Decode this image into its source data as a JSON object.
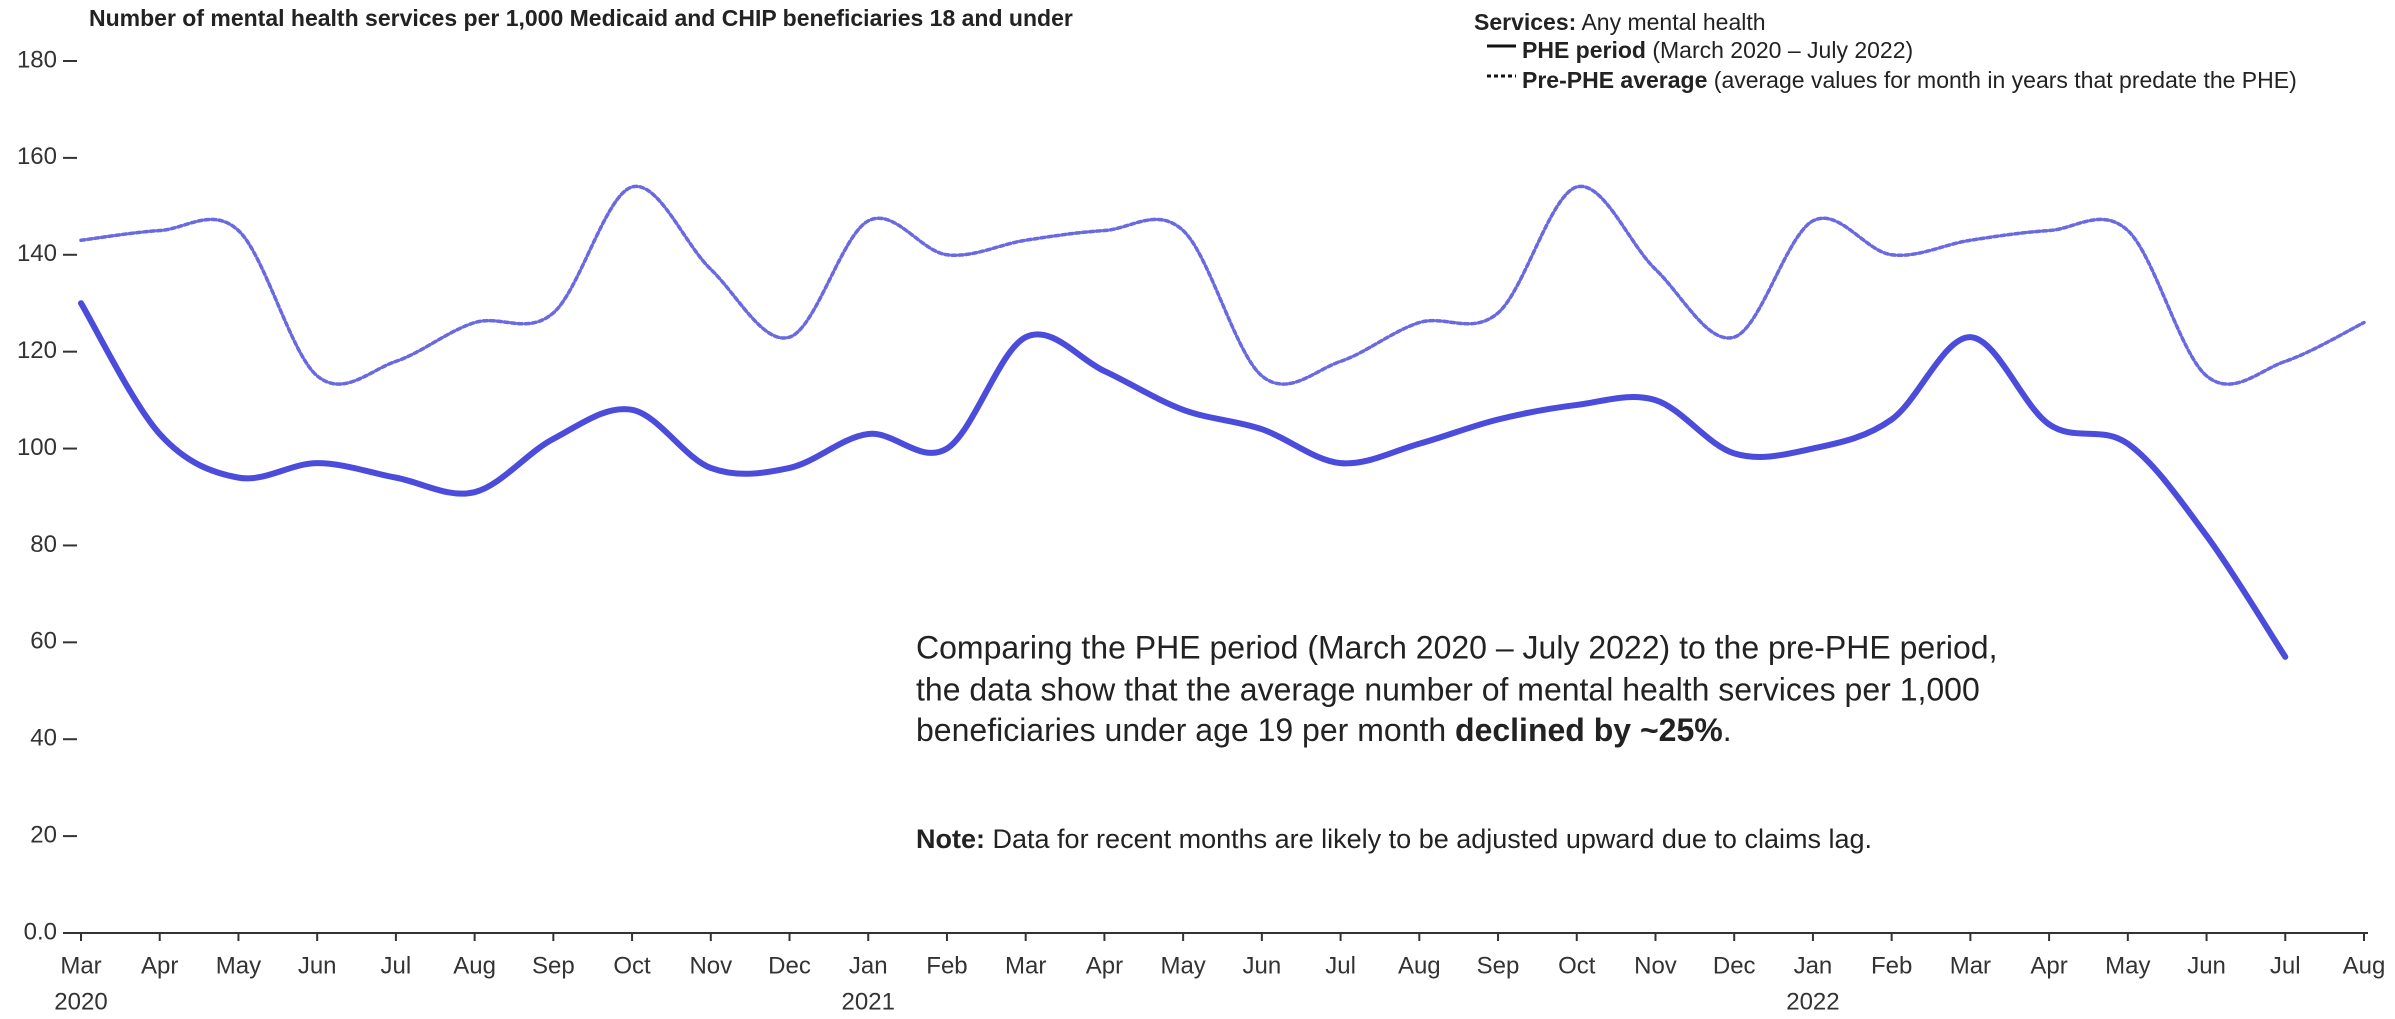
{
  "chart_data": {
    "type": "line",
    "title": "Number of mental health services per 1,000 Medicaid and CHIP beneficiaries 18 and under",
    "legend_title": "Services:",
    "legend_subtitle": "Any mental health",
    "categories": [
      "Mar",
      "Apr",
      "May",
      "Jun",
      "Jul",
      "Aug",
      "Sep",
      "Oct",
      "Nov",
      "Dec",
      "Jan",
      "Feb",
      "Mar",
      "Apr",
      "May",
      "Jun",
      "Jul",
      "Aug",
      "Sep",
      "Oct",
      "Nov",
      "Dec",
      "Jan",
      "Feb",
      "Mar",
      "Apr",
      "May",
      "Jun",
      "Jul",
      "Aug"
    ],
    "category_years": [
      "2020",
      null,
      null,
      null,
      null,
      null,
      null,
      null,
      null,
      null,
      "2021",
      null,
      null,
      null,
      null,
      null,
      null,
      null,
      null,
      null,
      null,
      null,
      "2022",
      null,
      null,
      null,
      null,
      null,
      null,
      null
    ],
    "series": [
      {
        "name": "PHE period",
        "description": "(March 2020 – July 2022)",
        "color": "#4b4bdc",
        "style": "solid",
        "values": [
          130,
          103,
          94,
          97,
          94,
          91,
          102,
          108,
          96,
          96,
          103,
          100,
          123,
          116,
          108,
          104,
          97,
          101,
          106,
          109,
          110,
          99,
          100,
          106,
          123,
          105,
          101,
          82,
          57,
          null
        ]
      },
      {
        "name": "Pre-PHE average",
        "description": "(average values for month in years that predate the PHE)",
        "color": "#6a6ae0",
        "style": "dotted",
        "values": [
          143,
          145,
          145,
          115,
          118,
          126,
          128,
          154,
          137,
          123,
          147,
          140,
          143,
          145,
          145,
          115,
          118,
          126,
          128,
          154,
          137,
          123,
          147,
          140,
          143,
          145,
          145,
          115,
          118,
          126
        ]
      }
    ],
    "ylim": [
      0,
      180
    ],
    "yticks": [
      {
        "value": 0,
        "label": "0.0"
      },
      20,
      40,
      60,
      80,
      100,
      120,
      140,
      160,
      180
    ],
    "annotation_lines": [
      "Comparing the PHE period (March 2020 – July 2022) to the pre-PHE period,",
      "the data show that the average number of mental health services per 1,000",
      "beneficiaries under age 19 per month "
    ],
    "annotation_bold": "declined by ~25%",
    "annotation_end": ".",
    "note_label": "Note:",
    "note": "Data for recent months are likely to be adjusted upward due to claims lag."
  }
}
